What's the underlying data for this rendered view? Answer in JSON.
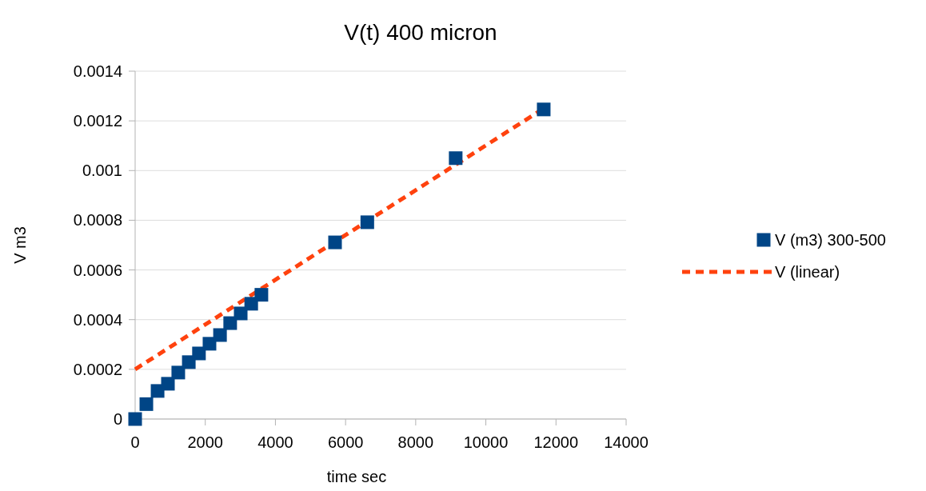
{
  "chart_data": {
    "type": "scatter",
    "title": "V(t) 400 micron",
    "xlabel": "time sec",
    "ylabel": "V m3",
    "series": [
      {
        "name": "V (m3) 300-500",
        "color": "#004586",
        "marker": "square",
        "x": [
          0,
          320,
          640,
          935,
          1230,
          1530,
          1820,
          2120,
          2420,
          2710,
          3010,
          3310,
          3600,
          5700,
          6620,
          9140,
          11650
        ],
        "values": [
          0,
          6e-05,
          0.000113,
          0.000142,
          0.000187,
          0.000229,
          0.000264,
          0.000303,
          0.000338,
          0.000386,
          0.000425,
          0.000464,
          0.0005,
          0.000711,
          0.000792,
          0.00105,
          0.001246
        ]
      },
      {
        "name": "V (linear)",
        "type": "line",
        "color": "#ff420e",
        "line_style": "dashed",
        "x": [
          0,
          11650
        ],
        "values": [
          0.0002,
          0.00125
        ]
      }
    ],
    "xlim": [
      0,
      14000
    ],
    "xticks": [
      0,
      2000,
      4000,
      6000,
      8000,
      10000,
      12000,
      14000
    ],
    "ylim": [
      0,
      0.0014
    ],
    "yticks": [
      0,
      0.0002,
      0.0004,
      0.0006,
      0.0008,
      0.001,
      0.0012,
      0.0014
    ],
    "grid": "y",
    "legend": "right"
  }
}
